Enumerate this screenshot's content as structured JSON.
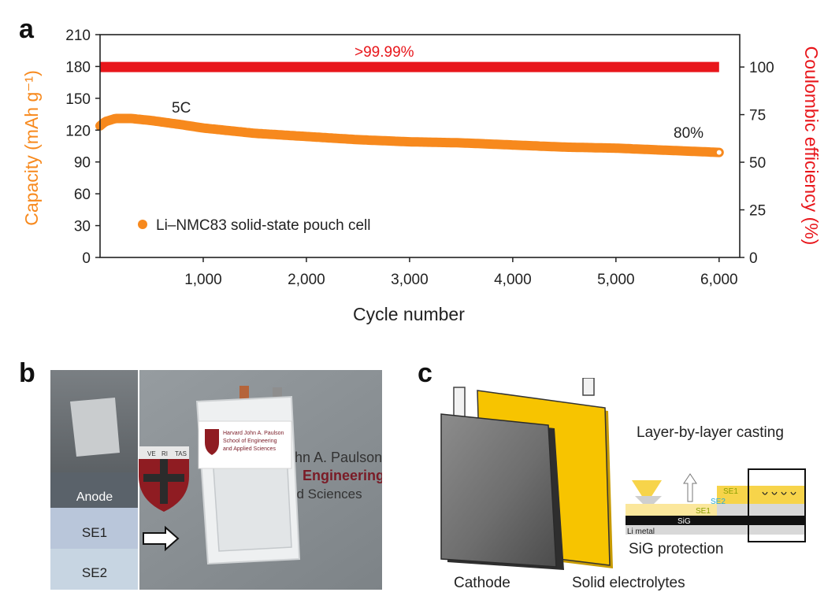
{
  "panels": {
    "a": "a",
    "b": "b",
    "c": "c"
  },
  "chart_data": {
    "type": "scatter",
    "xlabel": "Cycle number",
    "ylabel_left": "Capacity (mAh g⁻¹)",
    "ylabel_right": "Coulombic efficiency (%)",
    "xlim": [
      0,
      6200
    ],
    "ylim_left": [
      0,
      210
    ],
    "ylim_right": [
      0,
      117
    ],
    "x_ticks": [
      1000,
      2000,
      3000,
      4000,
      5000,
      6000
    ],
    "x_tick_labels": [
      "1,000",
      "2,000",
      "3,000",
      "4,000",
      "5,000",
      "6,000"
    ],
    "y_left_ticks": [
      0,
      30,
      60,
      90,
      120,
      150,
      180,
      210
    ],
    "y_right_ticks": [
      0,
      25,
      50,
      75,
      100
    ],
    "legend": {
      "label": "Li–NMC83 solid-state pouch cell",
      "placement": "bottom-left"
    },
    "annotations": {
      "ce": ">99.99%",
      "rate": "5C",
      "retention": "80%"
    },
    "series": [
      {
        "name": "Li–NMC83 solid-state pouch cell",
        "axis": "left",
        "x": [
          0,
          50,
          150,
          300,
          500,
          800,
          1000,
          1500,
          2000,
          2500,
          3000,
          3500,
          4000,
          4500,
          5000,
          5500,
          6000
        ],
        "values": [
          124,
          128,
          131,
          131,
          129,
          125,
          122,
          117,
          114,
          111,
          109,
          108,
          106,
          104,
          103,
          101,
          99
        ]
      },
      {
        "name": "Coulombic efficiency",
        "axis": "right",
        "x": [
          0,
          6000
        ],
        "values": [
          100,
          100
        ]
      }
    ],
    "colors": {
      "capacity": "#f7891d",
      "ce": "#e8161b",
      "left_axis_label": "#f7891d",
      "right_axis_label": "#e8161b"
    }
  },
  "photo_b": {
    "layers": [
      "Anode",
      "SE1",
      "SE2"
    ],
    "sign_lines": [
      "ohn A. Paulson",
      "Engineering",
      "ed Sciences"
    ],
    "label_lines": [
      "Harvard John A. Paulson",
      "School of Engineering",
      "and Applied Sciences"
    ],
    "shield_text": [
      "VE",
      "RI",
      "TAS"
    ]
  },
  "diagram_c": {
    "cathode": "Cathode",
    "electrolytes": "Solid electrolytes",
    "casting": "Layer-by-layer casting",
    "protection": "SiG protection",
    "se1": "SE1",
    "se2": "SE2",
    "sig": "SiG",
    "li_metal": "Li metal",
    "colors": {
      "electrolyte": "#f7c400",
      "se1_label": "#8aa000",
      "se2_label": "#2aa9d6"
    }
  }
}
